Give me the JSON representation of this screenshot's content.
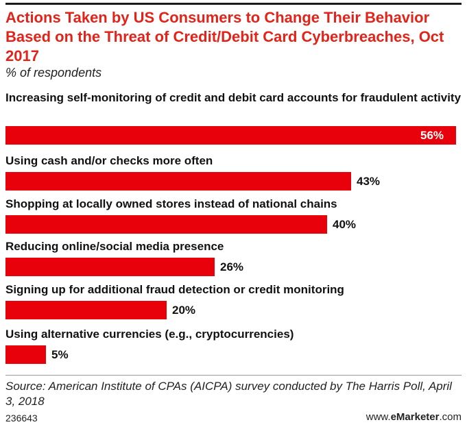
{
  "chart_data": {
    "type": "bar",
    "orientation": "horizontal",
    "title": "Actions Taken by US Consumers to Change Their Behavior Based on the Threat of Credit/Debit Card Cyberbreaches, Oct 2017",
    "subtitle": "% of respondents",
    "categories": [
      "Increasing self-monitoring of credit and debit card accounts for fraudulent activity",
      "Using cash and/or checks more often",
      "Shopping at locally owned stores instead of national chains",
      "Reducing online/social media presence",
      "Signing up for additional fraud detection or credit monitoring",
      "Using alternative currencies (e.g., cryptocurrencies)"
    ],
    "values": [
      56,
      43,
      40,
      26,
      20,
      5
    ],
    "value_labels": [
      "56%",
      "43%",
      "40%",
      "26%",
      "20%",
      "5%"
    ],
    "xlim": [
      0,
      56
    ],
    "bar_color": "#e8000b",
    "title_color": "#e2231a",
    "grid": false,
    "legend": "none"
  },
  "footer": {
    "source": "Source: American Institute of CPAs (AICPA) survey conducted by The Harris Poll, April 3, 2018",
    "id": "236643",
    "brand_prefix": "www.",
    "brand_name": "eMarketer",
    "brand_suffix": ".com"
  }
}
